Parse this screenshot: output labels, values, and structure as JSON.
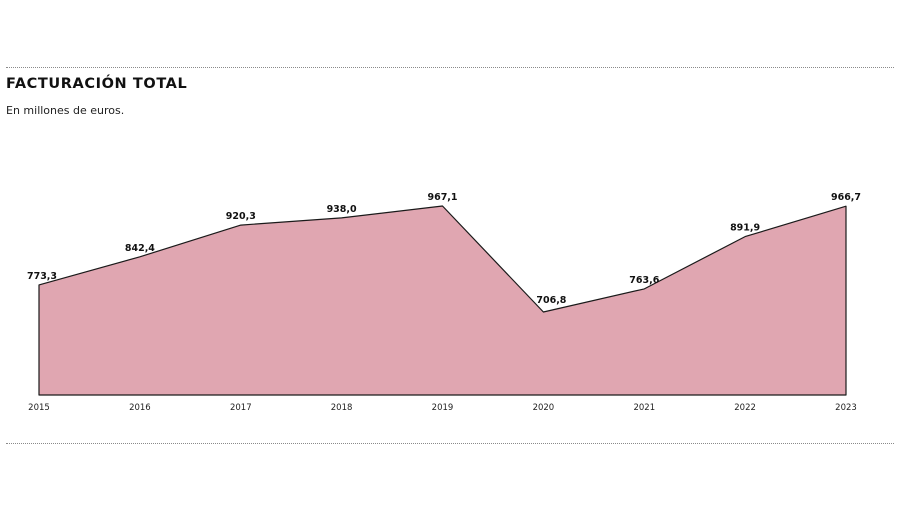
{
  "header": {
    "title": "FACTURACIÓN TOTAL",
    "subtitle": "En millones de euros."
  },
  "colors": {
    "fill": "#e0a6b1",
    "line": "#1a1a1a",
    "rule": "#8a8a8a"
  },
  "chart_data": {
    "type": "area",
    "title": "FACTURACIÓN TOTAL",
    "subtitle": "En millones de euros.",
    "xlabel": "",
    "ylabel": "Millones de euros",
    "categories": [
      "2015",
      "2016",
      "2017",
      "2018",
      "2019",
      "2020",
      "2021",
      "2022",
      "2023"
    ],
    "values": [
      773.3,
      842.4,
      920.3,
      938.0,
      967.1,
      706.8,
      763.6,
      891.9,
      966.7
    ],
    "value_labels": [
      "773,3",
      "842,4",
      "920,3",
      "938,0",
      "967,1",
      "706,8",
      "763,6",
      "891,9",
      "966,7"
    ],
    "grid": false,
    "legend": "none",
    "y_axis_visible": false,
    "ylim_approx": [
      503,
      967.1
    ]
  }
}
